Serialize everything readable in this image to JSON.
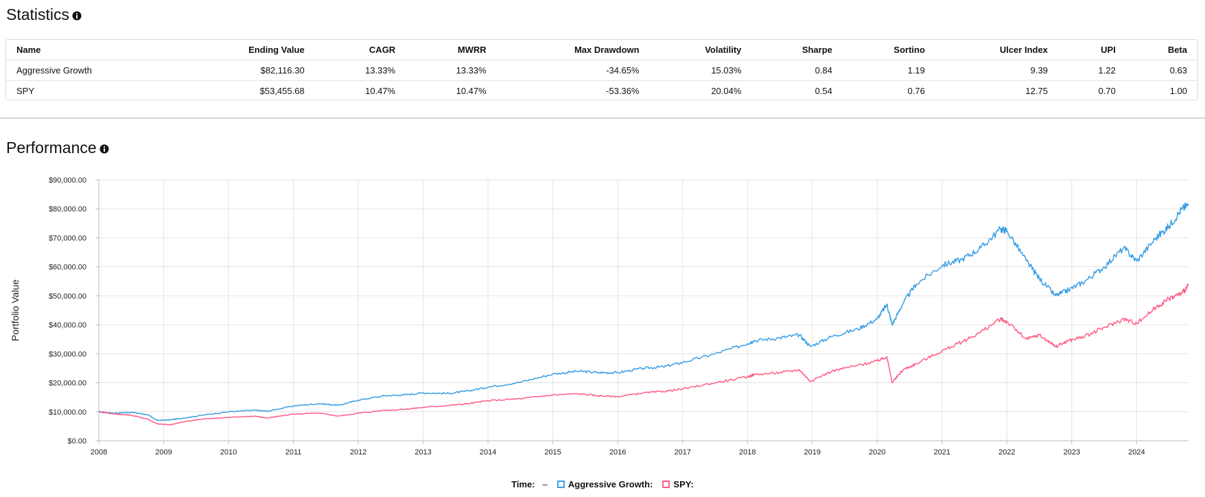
{
  "statistics": {
    "title": "Statistics",
    "columns": [
      "Name",
      "Ending Value",
      "CAGR",
      "MWRR",
      "Max Drawdown",
      "Volatility",
      "Sharpe",
      "Sortino",
      "Ulcer Index",
      "UPI",
      "Beta"
    ],
    "rows": [
      [
        "Aggressive Growth",
        "$82,116.30",
        "13.33%",
        "13.33%",
        "-34.65%",
        "15.03%",
        "0.84",
        "1.19",
        "9.39",
        "1.22",
        "0.63"
      ],
      [
        "SPY",
        "$53,455.68",
        "10.47%",
        "10.47%",
        "-53.36%",
        "20.04%",
        "0.54",
        "0.76",
        "12.75",
        "0.70",
        "1.00"
      ]
    ]
  },
  "performance": {
    "title": "Performance"
  },
  "icons": {
    "stats_info": "info-icon",
    "perf_info": "info-icon"
  },
  "legend": {
    "time_label": "Time:",
    "time_value": "–",
    "items": [
      {
        "label": "Aggressive Growth:",
        "color": "#3a9ee4"
      },
      {
        "label": "SPY:",
        "color": "#ff5d84"
      }
    ]
  },
  "chart_data": {
    "type": "line",
    "ylabel": "Portfolio Value",
    "xlabel": "",
    "ylim": [
      0,
      90000
    ],
    "yticks": [
      "$0.00",
      "$10,000.00",
      "$20,000.00",
      "$30,000.00",
      "$40,000.00",
      "$50,000.00",
      "$60,000.00",
      "$70,000.00",
      "$80,000.00",
      "$90,000.00"
    ],
    "ytick_values": [
      0,
      10000,
      20000,
      30000,
      40000,
      50000,
      60000,
      70000,
      80000,
      90000
    ],
    "xlim": [
      2008.0,
      2024.8
    ],
    "xticks": [
      "2008",
      "2009",
      "2010",
      "2011",
      "2012",
      "2013",
      "2014",
      "2015",
      "2016",
      "2017",
      "2018",
      "2019",
      "2020",
      "2021",
      "2022",
      "2023",
      "2024"
    ],
    "xtick_values": [
      2008,
      2009,
      2010,
      2011,
      2012,
      2013,
      2014,
      2015,
      2016,
      2017,
      2018,
      2019,
      2020,
      2021,
      2022,
      2023,
      2024
    ],
    "grid": true,
    "series": [
      {
        "name": "Aggressive Growth",
        "color": "#3a9ee4",
        "x": [
          2008.0,
          2008.25,
          2008.5,
          2008.75,
          2008.9,
          2009.1,
          2009.3,
          2009.6,
          2010.0,
          2010.4,
          2010.6,
          2011.0,
          2011.4,
          2011.7,
          2012.0,
          2012.4,
          2012.7,
          2013.0,
          2013.4,
          2013.7,
          2014.0,
          2014.5,
          2015.0,
          2015.4,
          2015.7,
          2016.0,
          2016.4,
          2016.7,
          2017.0,
          2017.5,
          2018.0,
          2018.1,
          2018.5,
          2018.8,
          2018.97,
          2019.3,
          2019.7,
          2020.0,
          2020.15,
          2020.23,
          2020.4,
          2020.6,
          2021.0,
          2021.3,
          2021.6,
          2021.9,
          2022.0,
          2022.3,
          2022.5,
          2022.75,
          2022.95,
          2023.2,
          2023.5,
          2023.8,
          2024.0,
          2024.3,
          2024.5,
          2024.7,
          2024.8
        ],
        "y": [
          10000,
          9500,
          9800,
          9000,
          7000,
          7200,
          7800,
          8800,
          10000,
          10500,
          10200,
          12000,
          12800,
          12200,
          14000,
          15500,
          15800,
          16500,
          16300,
          17200,
          18500,
          20200,
          23000,
          24000,
          23500,
          23500,
          25000,
          25500,
          27000,
          30000,
          33500,
          34500,
          35500,
          36500,
          32500,
          36000,
          38500,
          42000,
          47000,
          40000,
          47500,
          54000,
          60500,
          62500,
          66500,
          73000,
          72500,
          62000,
          56000,
          50000,
          52000,
          55000,
          60000,
          66500,
          62000,
          70000,
          74000,
          80000,
          81500
        ]
      },
      {
        "name": "SPY",
        "color": "#ff5d84",
        "x": [
          2008.0,
          2008.25,
          2008.5,
          2008.75,
          2008.9,
          2009.1,
          2009.3,
          2009.6,
          2010.0,
          2010.4,
          2010.6,
          2011.0,
          2011.4,
          2011.7,
          2012.0,
          2012.4,
          2012.7,
          2013.0,
          2013.4,
          2013.7,
          2014.0,
          2014.5,
          2015.0,
          2015.4,
          2015.7,
          2016.0,
          2016.4,
          2016.7,
          2017.0,
          2017.5,
          2018.0,
          2018.1,
          2018.5,
          2018.8,
          2018.97,
          2019.3,
          2019.7,
          2020.0,
          2020.15,
          2020.23,
          2020.4,
          2020.6,
          2021.0,
          2021.3,
          2021.6,
          2021.9,
          2022.0,
          2022.3,
          2022.5,
          2022.75,
          2022.95,
          2023.2,
          2023.5,
          2023.8,
          2024.0,
          2024.3,
          2024.5,
          2024.7,
          2024.8
        ],
        "y": [
          10000,
          9200,
          8800,
          7500,
          5800,
          5500,
          6500,
          7500,
          8000,
          8500,
          7800,
          9200,
          9500,
          8500,
          9500,
          10500,
          10800,
          11500,
          12200,
          12800,
          13800,
          14500,
          15800,
          16200,
          15500,
          15200,
          16500,
          17000,
          17800,
          20000,
          22000,
          22800,
          23500,
          24500,
          20500,
          24000,
          26000,
          27500,
          29000,
          20000,
          24500,
          26500,
          31000,
          34000,
          37500,
          42000,
          41000,
          35000,
          36500,
          32500,
          34500,
          36000,
          39000,
          42000,
          40500,
          46000,
          49000,
          51000,
          53500
        ]
      }
    ]
  }
}
